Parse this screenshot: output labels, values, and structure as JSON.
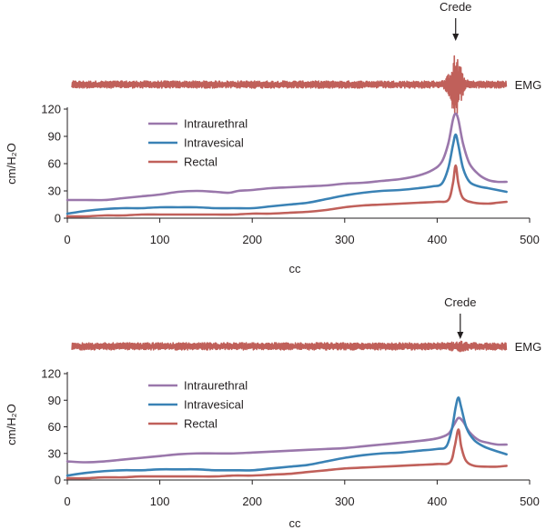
{
  "colors": {
    "intraurethral": "#9a77ab",
    "intravesical": "#3a82b5",
    "rectal": "#c0605a",
    "emg": "#c0605a",
    "axis": "#231f20"
  },
  "chart_data": [
    {
      "type": "line",
      "xlabel": "cc",
      "ylabel": "cm/H₂O",
      "xlim": [
        0,
        500
      ],
      "ylim": [
        0,
        120
      ],
      "x_ticks": [
        "0",
        "100",
        "200",
        "300",
        "400",
        "500"
      ],
      "y_ticks": [
        "0",
        "30",
        "60",
        "90",
        "120"
      ],
      "legend_position": "top-left",
      "emg": {
        "label": "EMG",
        "x_range": [
          5,
          475
        ],
        "baseline_amplitude": 4,
        "burst": {
          "x": 420,
          "peak_amplitude": 30,
          "width": 14
        }
      },
      "annotation": {
        "text": "Crede",
        "x": 420
      },
      "series": [
        {
          "name": "Intraurethral",
          "color_key": "intraurethral",
          "points": [
            [
              0,
              20
            ],
            [
              20,
              20
            ],
            [
              40,
              20
            ],
            [
              60,
              22
            ],
            [
              80,
              24
            ],
            [
              100,
              26
            ],
            [
              120,
              29
            ],
            [
              140,
              30
            ],
            [
              160,
              29
            ],
            [
              175,
              28
            ],
            [
              185,
              30
            ],
            [
              200,
              31
            ],
            [
              220,
              33
            ],
            [
              240,
              34
            ],
            [
              260,
              35
            ],
            [
              280,
              36
            ],
            [
              300,
              38
            ],
            [
              320,
              39
            ],
            [
              340,
              41
            ],
            [
              360,
              43
            ],
            [
              380,
              47
            ],
            [
              395,
              53
            ],
            [
              405,
              62
            ],
            [
              412,
              82
            ],
            [
              417,
              108
            ],
            [
              420,
              115
            ],
            [
              423,
              108
            ],
            [
              428,
              82
            ],
            [
              435,
              60
            ],
            [
              445,
              48
            ],
            [
              455,
              42
            ],
            [
              465,
              40
            ],
            [
              475,
              40
            ]
          ]
        },
        {
          "name": "Intravesical",
          "color_key": "intravesical",
          "points": [
            [
              0,
              5
            ],
            [
              20,
              8
            ],
            [
              40,
              10
            ],
            [
              60,
              11
            ],
            [
              80,
              11
            ],
            [
              100,
              12
            ],
            [
              120,
              12
            ],
            [
              140,
              12
            ],
            [
              160,
              11
            ],
            [
              180,
              11
            ],
            [
              200,
              11
            ],
            [
              220,
              13
            ],
            [
              240,
              15
            ],
            [
              260,
              17
            ],
            [
              280,
              21
            ],
            [
              300,
              25
            ],
            [
              320,
              28
            ],
            [
              340,
              30
            ],
            [
              360,
              31
            ],
            [
              380,
              33
            ],
            [
              395,
              35
            ],
            [
              405,
              38
            ],
            [
              412,
              55
            ],
            [
              417,
              80
            ],
            [
              420,
              92
            ],
            [
              423,
              80
            ],
            [
              428,
              55
            ],
            [
              435,
              40
            ],
            [
              445,
              35
            ],
            [
              455,
              33
            ],
            [
              465,
              31
            ],
            [
              475,
              29
            ]
          ]
        },
        {
          "name": "Rectal",
          "color_key": "rectal",
          "points": [
            [
              0,
              2
            ],
            [
              20,
              2
            ],
            [
              40,
              3
            ],
            [
              60,
              3
            ],
            [
              80,
              4
            ],
            [
              100,
              4
            ],
            [
              120,
              4
            ],
            [
              140,
              4
            ],
            [
              160,
              4
            ],
            [
              180,
              4
            ],
            [
              200,
              5
            ],
            [
              220,
              5
            ],
            [
              240,
              6
            ],
            [
              260,
              7
            ],
            [
              280,
              9
            ],
            [
              300,
              12
            ],
            [
              320,
              14
            ],
            [
              340,
              15
            ],
            [
              360,
              16
            ],
            [
              380,
              17
            ],
            [
              400,
              18
            ],
            [
              412,
              20
            ],
            [
              417,
              38
            ],
            [
              420,
              58
            ],
            [
              423,
              38
            ],
            [
              428,
              22
            ],
            [
              440,
              17
            ],
            [
              455,
              16
            ],
            [
              465,
              17
            ],
            [
              475,
              18
            ]
          ]
        }
      ]
    },
    {
      "type": "line",
      "xlabel": "cc",
      "ylabel": "cm/H₂O",
      "xlim": [
        0,
        500
      ],
      "ylim": [
        0,
        120
      ],
      "x_ticks": [
        "0",
        "100",
        "200",
        "300",
        "400",
        "500"
      ],
      "y_ticks": [
        "0",
        "30",
        "60",
        "90",
        "120"
      ],
      "legend_position": "top-left",
      "emg": {
        "label": "EMG",
        "x_range": [
          5,
          475
        ],
        "baseline_amplitude": 4,
        "burst": {
          "x": 423,
          "peak_amplitude": 2,
          "width": 14
        }
      },
      "annotation": {
        "text": "Crede",
        "x": 425
      },
      "series": [
        {
          "name": "Intraurethral",
          "color_key": "intraurethral",
          "points": [
            [
              0,
              21
            ],
            [
              20,
              20
            ],
            [
              40,
              21
            ],
            [
              60,
              23
            ],
            [
              80,
              25
            ],
            [
              100,
              27
            ],
            [
              120,
              29
            ],
            [
              140,
              30
            ],
            [
              160,
              30
            ],
            [
              180,
              30
            ],
            [
              200,
              31
            ],
            [
              220,
              32
            ],
            [
              240,
              33
            ],
            [
              260,
              34
            ],
            [
              280,
              35
            ],
            [
              300,
              36
            ],
            [
              320,
              38
            ],
            [
              340,
              40
            ],
            [
              360,
              42
            ],
            [
              380,
              44
            ],
            [
              400,
              47
            ],
            [
              412,
              52
            ],
            [
              418,
              62
            ],
            [
              423,
              70
            ],
            [
              428,
              66
            ],
            [
              435,
              54
            ],
            [
              445,
              45
            ],
            [
              455,
              42
            ],
            [
              465,
              40
            ],
            [
              475,
              40
            ]
          ]
        },
        {
          "name": "Intravesical",
          "color_key": "intravesical",
          "points": [
            [
              0,
              5
            ],
            [
              20,
              8
            ],
            [
              40,
              10
            ],
            [
              60,
              11
            ],
            [
              80,
              11
            ],
            [
              100,
              12
            ],
            [
              120,
              12
            ],
            [
              140,
              12
            ],
            [
              160,
              11
            ],
            [
              180,
              11
            ],
            [
              200,
              11
            ],
            [
              220,
              13
            ],
            [
              240,
              15
            ],
            [
              260,
              17
            ],
            [
              280,
              21
            ],
            [
              300,
              25
            ],
            [
              320,
              28
            ],
            [
              340,
              30
            ],
            [
              360,
              31
            ],
            [
              380,
              33
            ],
            [
              400,
              35
            ],
            [
              410,
              38
            ],
            [
              416,
              58
            ],
            [
              420,
              82
            ],
            [
              423,
              93
            ],
            [
              426,
              82
            ],
            [
              432,
              58
            ],
            [
              440,
              45
            ],
            [
              450,
              38
            ],
            [
              460,
              34
            ],
            [
              475,
              29
            ]
          ]
        },
        {
          "name": "Rectal",
          "color_key": "rectal",
          "points": [
            [
              0,
              2
            ],
            [
              20,
              2
            ],
            [
              40,
              3
            ],
            [
              60,
              3
            ],
            [
              80,
              4
            ],
            [
              100,
              4
            ],
            [
              120,
              4
            ],
            [
              140,
              4
            ],
            [
              160,
              4
            ],
            [
              180,
              5
            ],
            [
              200,
              5
            ],
            [
              220,
              6
            ],
            [
              240,
              7
            ],
            [
              260,
              9
            ],
            [
              280,
              11
            ],
            [
              300,
              13
            ],
            [
              320,
              14
            ],
            [
              340,
              15
            ],
            [
              360,
              16
            ],
            [
              380,
              17
            ],
            [
              400,
              18
            ],
            [
              414,
              20
            ],
            [
              419,
              38
            ],
            [
              423,
              57
            ],
            [
              426,
              38
            ],
            [
              431,
              22
            ],
            [
              440,
              16
            ],
            [
              455,
              15
            ],
            [
              465,
              15
            ],
            [
              475,
              16
            ]
          ]
        }
      ]
    }
  ]
}
